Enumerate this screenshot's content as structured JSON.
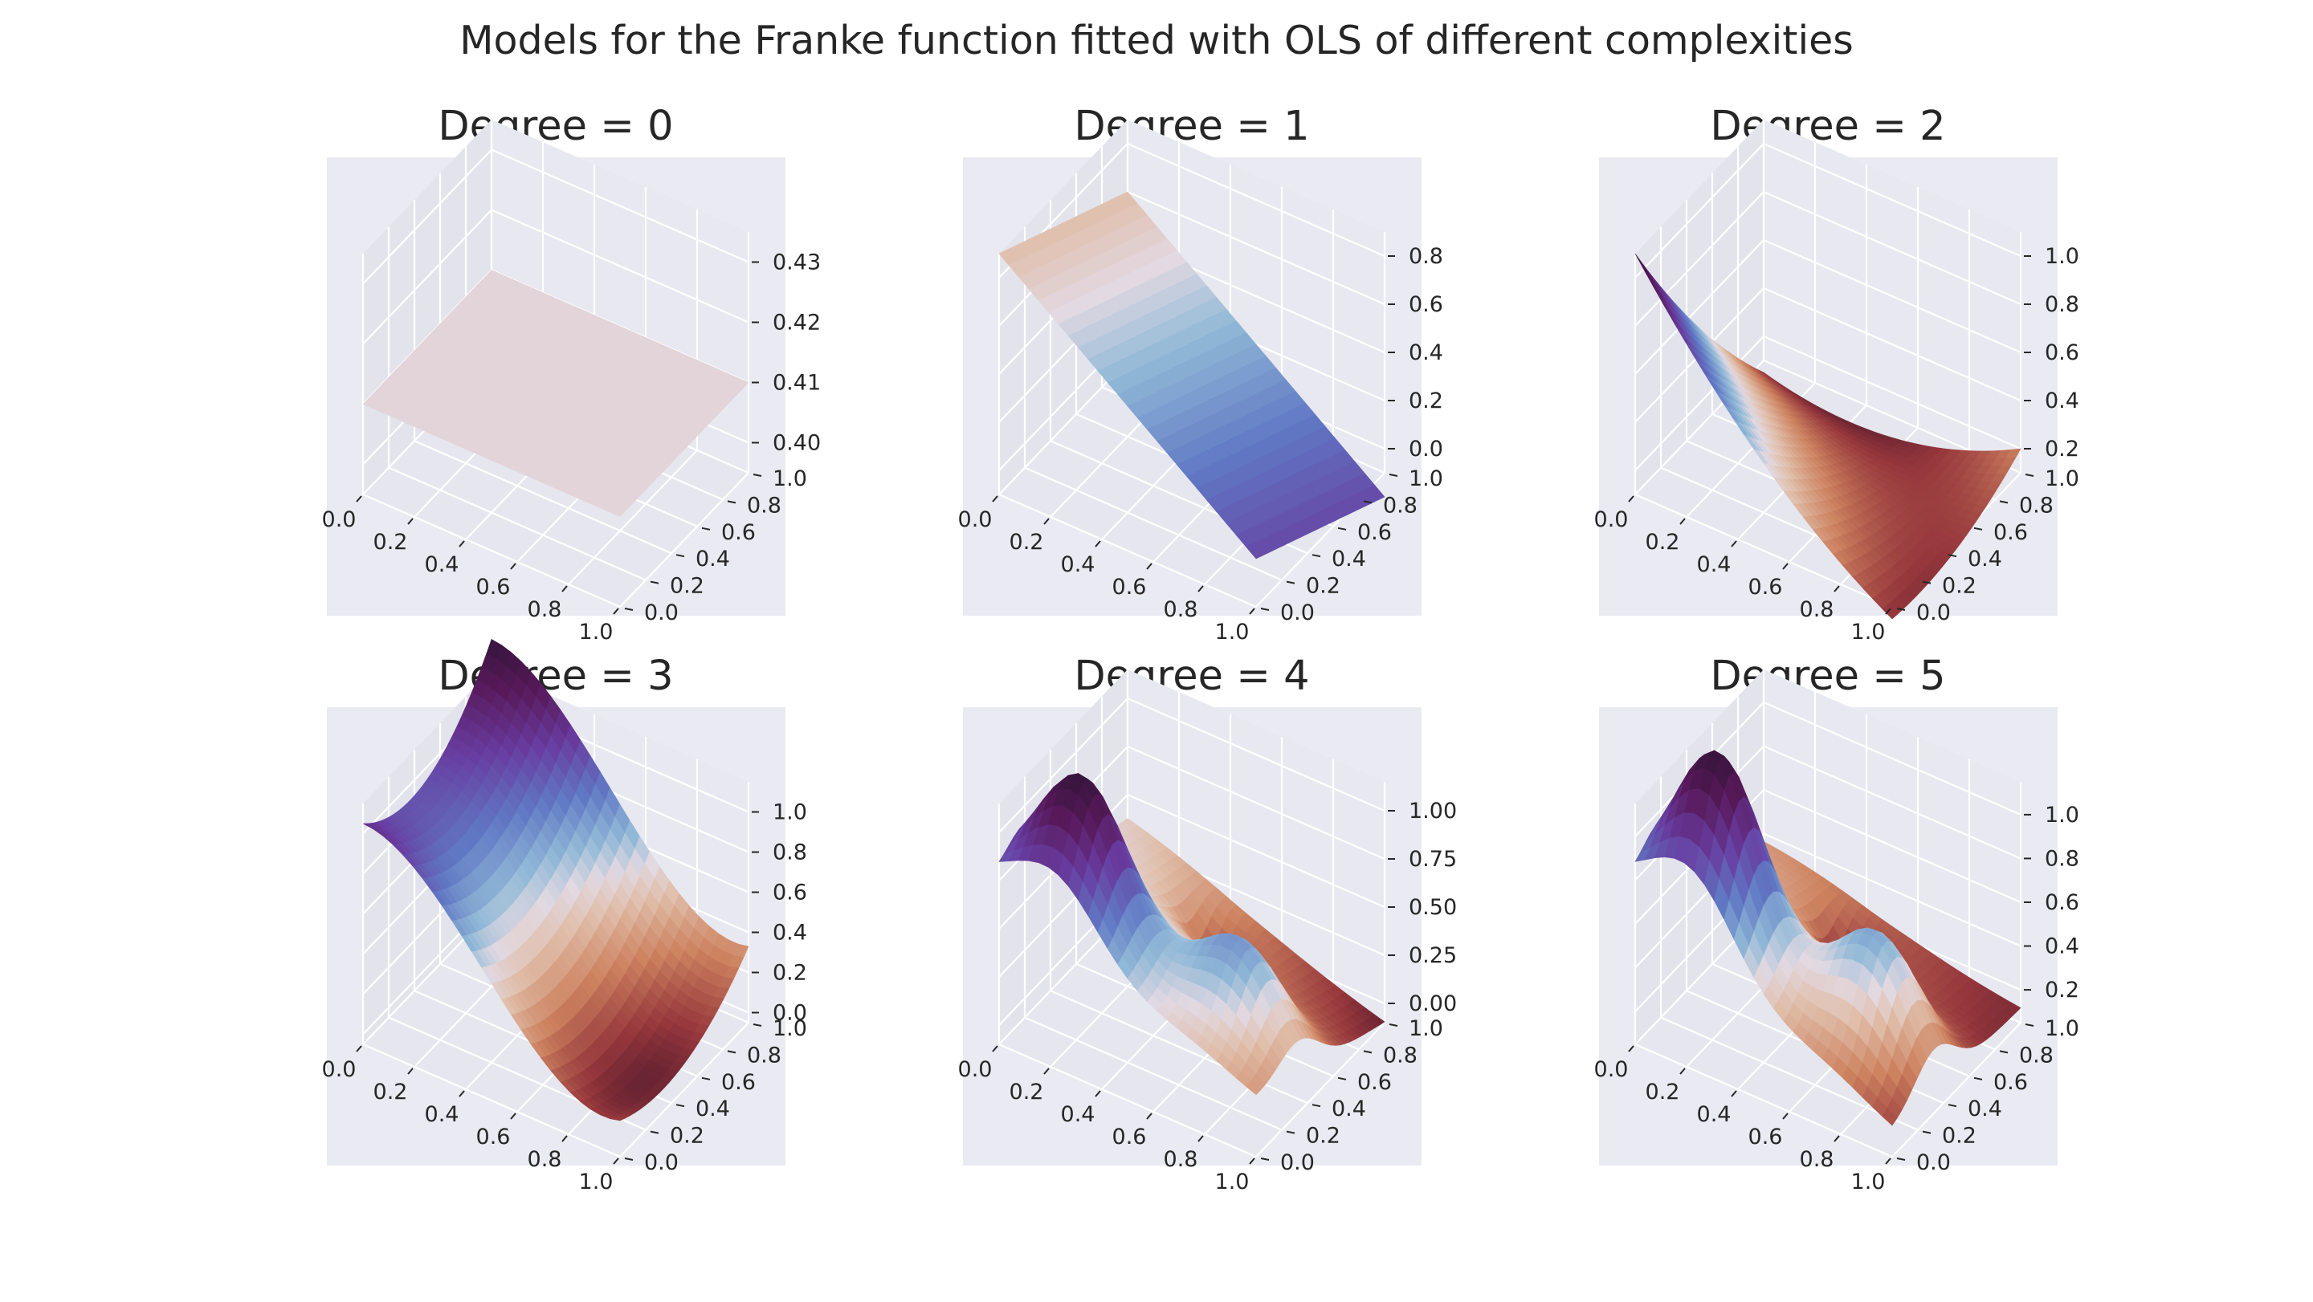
{
  "suptitle": "Models for the Franke function fitted with OLS of different complexities",
  "colors": {
    "pane": "#eaeaf2",
    "background": "#ffffff",
    "grid": "#ffffff",
    "text": "#262626",
    "colormap": "twilight_shifted"
  },
  "chart_data": [
    {
      "type": "surface",
      "title": "Degree = 0",
      "degree": 0,
      "xticks": [
        "0.0",
        "0.2",
        "0.4",
        "0.6",
        "0.8",
        "1.0"
      ],
      "yticks": [
        "0.0",
        "0.2",
        "0.4",
        "0.6",
        "0.8",
        "1.0"
      ],
      "zticks": [
        "0.40",
        "0.41",
        "0.42",
        "0.43"
      ],
      "xlim": [
        0,
        1
      ],
      "ylim": [
        0,
        1
      ],
      "zlim": [
        0.395,
        0.435
      ],
      "surface_value": 0.41
    },
    {
      "type": "surface",
      "title": "Degree = 1",
      "degree": 1,
      "xticks": [
        "0.0",
        "0.2",
        "0.4",
        "0.6",
        "0.8",
        "1.0"
      ],
      "yticks": [
        "0.0",
        "0.2",
        "0.4",
        "0.6",
        "0.8",
        "1.0"
      ],
      "zticks": [
        "0.0",
        "0.2",
        "0.4",
        "0.6",
        "0.8"
      ],
      "xlim": [
        0,
        1
      ],
      "ylim": [
        0,
        1
      ],
      "zlim": [
        -0.1,
        0.9
      ]
    },
    {
      "type": "surface",
      "title": "Degree = 2",
      "degree": 2,
      "xticks": [
        "0.0",
        "0.2",
        "0.4",
        "0.6",
        "0.8",
        "1.0"
      ],
      "yticks": [
        "0.0",
        "0.2",
        "0.4",
        "0.6",
        "0.8",
        "1.0"
      ],
      "zticks": [
        "0.2",
        "0.4",
        "0.6",
        "0.8",
        "1.0"
      ],
      "xlim": [
        0,
        1
      ],
      "ylim": [
        0,
        1
      ],
      "zlim": [
        0.1,
        1.1
      ]
    },
    {
      "type": "surface",
      "title": "Degree = 3",
      "degree": 3,
      "xticks": [
        "0.0",
        "0.2",
        "0.4",
        "0.6",
        "0.8",
        "1.0"
      ],
      "yticks": [
        "0.0",
        "0.2",
        "0.4",
        "0.6",
        "0.8",
        "1.0"
      ],
      "zticks": [
        "0.0",
        "0.2",
        "0.4",
        "0.6",
        "0.8",
        "1.0"
      ],
      "xlim": [
        0,
        1
      ],
      "ylim": [
        0,
        1
      ],
      "zlim": [
        -0.05,
        1.15
      ]
    },
    {
      "type": "surface",
      "title": "Degree = 4",
      "degree": 4,
      "xticks": [
        "0.0",
        "0.2",
        "0.4",
        "0.6",
        "0.8",
        "1.0"
      ],
      "yticks": [
        "0.0",
        "0.2",
        "0.4",
        "0.6",
        "0.8",
        "1.0"
      ],
      "zticks": [
        "0.00",
        "0.25",
        "0.50",
        "0.75",
        "1.00"
      ],
      "xlim": [
        0,
        1
      ],
      "ylim": [
        0,
        1
      ],
      "zlim": [
        -0.1,
        1.15
      ]
    },
    {
      "type": "surface",
      "title": "Degree = 5",
      "degree": 5,
      "xticks": [
        "0.0",
        "0.2",
        "0.4",
        "0.6",
        "0.8",
        "1.0"
      ],
      "yticks": [
        "0.0",
        "0.2",
        "0.4",
        "0.6",
        "0.8",
        "1.0"
      ],
      "zticks": [
        "0.2",
        "0.4",
        "0.6",
        "0.8",
        "1.0"
      ],
      "xlim": [
        0,
        1
      ],
      "ylim": [
        0,
        1
      ],
      "zlim": [
        0.05,
        1.15
      ]
    }
  ]
}
